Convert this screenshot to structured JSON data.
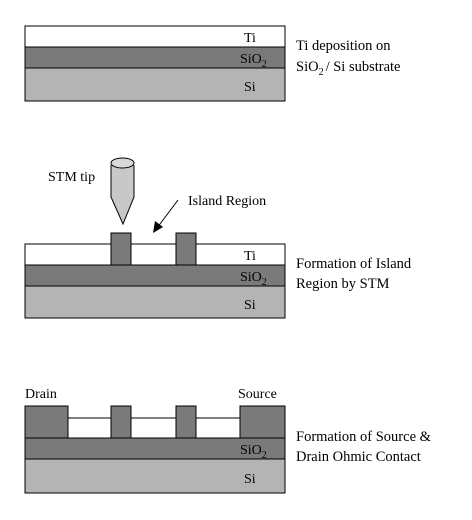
{
  "stage1": {
    "layers": {
      "ti": "Ti",
      "sio2": "SiO",
      "sio2_sub": "2",
      "si": "Si"
    },
    "caption": {
      "line1": "Ti deposition on",
      "line2_a": "SiO",
      "line2_sub": "2",
      "line2_b": "/ Si substrate"
    }
  },
  "stage2": {
    "tip_label": "STM tip",
    "island_label": "Island Region",
    "layers": {
      "ti": "Ti",
      "sio2": "SiO",
      "sio2_sub": "2",
      "si": "Si"
    },
    "caption": {
      "line1": "Formation of Island",
      "line2": "Region by STM"
    }
  },
  "stage3": {
    "drain_label": "Drain",
    "source_label": "Source",
    "layers": {
      "sio2": "SiO",
      "sio2_sub": "2",
      "si": "Si"
    },
    "caption": {
      "line1": "Formation of Source &",
      "line2": "Drain Ohmic Contact"
    }
  },
  "colors": {
    "ti": "#ffffff",
    "sio2": "#7a7a7a",
    "si": "#b4b4b4",
    "island": "#7a7a7a",
    "tip": "#c8c8c8",
    "outline": "#000000"
  }
}
